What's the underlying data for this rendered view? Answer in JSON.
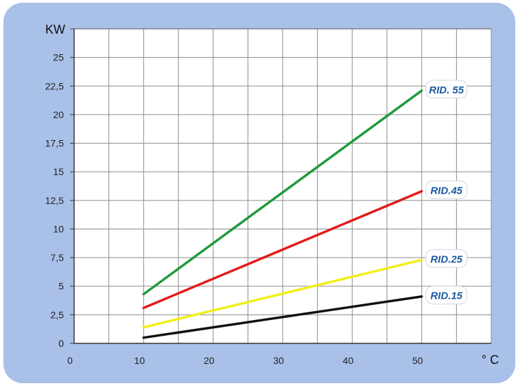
{
  "chart_data": {
    "type": "line",
    "title": "",
    "xlabel": "° C",
    "ylabel": "KW",
    "xlim": [
      0,
      60
    ],
    "ylim": [
      0,
      27.5
    ],
    "x_ticks": [
      0,
      10,
      20,
      30,
      40,
      50
    ],
    "x_tick_labels": [
      "0",
      "10",
      "20",
      "30",
      "40",
      "50"
    ],
    "y_ticks": [
      0,
      2.5,
      5,
      7.5,
      10,
      12.5,
      15,
      17.5,
      20,
      22.5,
      25
    ],
    "y_tick_labels": [
      "0",
      "2,5",
      "5",
      "7,5",
      "10",
      "12,5",
      "15",
      "17,5",
      "20",
      "22,5",
      "25"
    ],
    "grid": true,
    "series": [
      {
        "name": "RID. 55",
        "color": "#1e9a3c",
        "x": [
          10,
          50
        ],
        "values": [
          4.3,
          22.1
        ]
      },
      {
        "name": "RID.45",
        "color": "#e21b1b",
        "x": [
          10,
          50
        ],
        "values": [
          3.1,
          13.3
        ]
      },
      {
        "name": "RID.25",
        "color": "#f2ee1a",
        "x": [
          10,
          50
        ],
        "values": [
          1.4,
          7.3
        ]
      },
      {
        "name": "RID.15",
        "color": "#111111",
        "x": [
          10,
          50
        ],
        "values": [
          0.5,
          4.1
        ]
      }
    ]
  }
}
